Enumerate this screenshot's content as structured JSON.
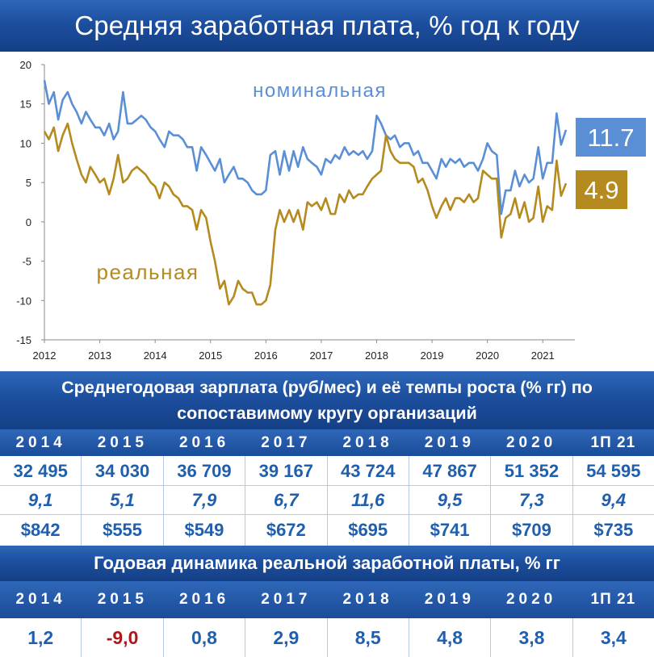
{
  "title": "Средняя заработная плата, % год к году",
  "chart_data": {
    "type": "line",
    "title": "Средняя заработная плата, % год к году",
    "xlim": [
      2012,
      2021.58
    ],
    "ylim": [
      -15,
      20
    ],
    "y_ticks": [
      -15,
      -10,
      -5,
      0,
      5,
      10,
      15,
      20
    ],
    "x_ticks": [
      2012,
      2013,
      2014,
      2015,
      2016,
      2017,
      2018,
      2019,
      2020,
      2021
    ],
    "grid": false,
    "series": [
      {
        "name": "номинальная",
        "color": "#5a8fd6",
        "end_label": "11.7",
        "points": [
          [
            2012.0,
            18.0
          ],
          [
            2012.08,
            15.0
          ],
          [
            2012.17,
            16.5
          ],
          [
            2012.25,
            13.0
          ],
          [
            2012.33,
            15.5
          ],
          [
            2012.42,
            16.5
          ],
          [
            2012.5,
            15.0
          ],
          [
            2012.58,
            14.0
          ],
          [
            2012.67,
            12.5
          ],
          [
            2012.75,
            14.0
          ],
          [
            2012.83,
            13.0
          ],
          [
            2012.92,
            12.0
          ],
          [
            2013.0,
            12.0
          ],
          [
            2013.08,
            11.0
          ],
          [
            2013.17,
            12.5
          ],
          [
            2013.25,
            10.5
          ],
          [
            2013.33,
            11.5
          ],
          [
            2013.42,
            16.5
          ],
          [
            2013.5,
            12.5
          ],
          [
            2013.58,
            12.5
          ],
          [
            2013.67,
            13.0
          ],
          [
            2013.75,
            13.5
          ],
          [
            2013.83,
            13.0
          ],
          [
            2013.92,
            12.0
          ],
          [
            2014.0,
            11.5
          ],
          [
            2014.08,
            10.5
          ],
          [
            2014.17,
            9.5
          ],
          [
            2014.25,
            11.5
          ],
          [
            2014.33,
            11.0
          ],
          [
            2014.42,
            11.0
          ],
          [
            2014.5,
            10.5
          ],
          [
            2014.58,
            9.5
          ],
          [
            2014.67,
            9.5
          ],
          [
            2014.75,
            6.5
          ],
          [
            2014.83,
            9.5
          ],
          [
            2014.92,
            8.5
          ],
          [
            2015.0,
            7.5
          ],
          [
            2015.08,
            6.5
          ],
          [
            2015.17,
            8.0
          ],
          [
            2015.25,
            5.0
          ],
          [
            2015.33,
            6.0
          ],
          [
            2015.42,
            7.0
          ],
          [
            2015.5,
            5.5
          ],
          [
            2015.58,
            5.5
          ],
          [
            2015.67,
            5.0
          ],
          [
            2015.75,
            4.0
          ],
          [
            2015.83,
            3.5
          ],
          [
            2015.92,
            3.5
          ],
          [
            2016.0,
            4.0
          ],
          [
            2016.08,
            8.5
          ],
          [
            2016.17,
            9.0
          ],
          [
            2016.25,
            6.0
          ],
          [
            2016.33,
            9.0
          ],
          [
            2016.42,
            6.5
          ],
          [
            2016.5,
            9.0
          ],
          [
            2016.58,
            7.0
          ],
          [
            2016.67,
            9.5
          ],
          [
            2016.75,
            8.0
          ],
          [
            2016.83,
            7.5
          ],
          [
            2016.92,
            7.0
          ],
          [
            2017.0,
            6.0
          ],
          [
            2017.08,
            8.0
          ],
          [
            2017.17,
            7.5
          ],
          [
            2017.25,
            8.5
          ],
          [
            2017.33,
            8.0
          ],
          [
            2017.42,
            9.5
          ],
          [
            2017.5,
            8.5
          ],
          [
            2017.58,
            9.0
          ],
          [
            2017.67,
            8.5
          ],
          [
            2017.75,
            9.0
          ],
          [
            2017.83,
            8.0
          ],
          [
            2017.92,
            9.0
          ],
          [
            2018.0,
            13.5
          ],
          [
            2018.08,
            12.5
          ],
          [
            2018.17,
            11.0
          ],
          [
            2018.25,
            10.5
          ],
          [
            2018.33,
            11.0
          ],
          [
            2018.42,
            9.5
          ],
          [
            2018.5,
            10.0
          ],
          [
            2018.58,
            10.0
          ],
          [
            2018.67,
            8.5
          ],
          [
            2018.75,
            9.0
          ],
          [
            2018.83,
            7.5
          ],
          [
            2018.92,
            7.5
          ],
          [
            2019.0,
            6.5
          ],
          [
            2019.08,
            5.5
          ],
          [
            2019.17,
            8.0
          ],
          [
            2019.25,
            7.0
          ],
          [
            2019.33,
            8.0
          ],
          [
            2019.42,
            7.5
          ],
          [
            2019.5,
            8.0
          ],
          [
            2019.58,
            7.0
          ],
          [
            2019.67,
            7.5
          ],
          [
            2019.75,
            7.5
          ],
          [
            2019.83,
            6.5
          ],
          [
            2019.92,
            8.0
          ],
          [
            2020.0,
            10.0
          ],
          [
            2020.08,
            9.0
          ],
          [
            2020.17,
            8.5
          ],
          [
            2020.25,
            1.0
          ],
          [
            2020.33,
            4.0
          ],
          [
            2020.42,
            4.0
          ],
          [
            2020.5,
            6.5
          ],
          [
            2020.58,
            4.5
          ],
          [
            2020.67,
            6.0
          ],
          [
            2020.75,
            5.0
          ],
          [
            2020.83,
            5.5
          ],
          [
            2020.92,
            9.5
          ],
          [
            2021.0,
            5.5
          ],
          [
            2021.08,
            7.5
          ],
          [
            2021.17,
            7.5
          ],
          [
            2021.25,
            13.8
          ],
          [
            2021.33,
            9.8
          ],
          [
            2021.42,
            11.7
          ]
        ]
      },
      {
        "name": "реальная",
        "color": "#b58a1e",
        "end_label": "4.9",
        "points": [
          [
            2012.0,
            11.5
          ],
          [
            2012.08,
            10.5
          ],
          [
            2012.17,
            12.0
          ],
          [
            2012.25,
            9.0
          ],
          [
            2012.33,
            11.0
          ],
          [
            2012.42,
            12.5
          ],
          [
            2012.5,
            10.0
          ],
          [
            2012.58,
            8.0
          ],
          [
            2012.67,
            6.0
          ],
          [
            2012.75,
            5.0
          ],
          [
            2012.83,
            7.0
          ],
          [
            2012.92,
            6.0
          ],
          [
            2013.0,
            5.0
          ],
          [
            2013.08,
            5.5
          ],
          [
            2013.17,
            3.5
          ],
          [
            2013.25,
            5.5
          ],
          [
            2013.33,
            8.5
          ],
          [
            2013.42,
            5.0
          ],
          [
            2013.5,
            5.5
          ],
          [
            2013.58,
            6.5
          ],
          [
            2013.67,
            7.0
          ],
          [
            2013.75,
            6.5
          ],
          [
            2013.83,
            6.0
          ],
          [
            2013.92,
            5.0
          ],
          [
            2014.0,
            4.5
          ],
          [
            2014.08,
            3.0
          ],
          [
            2014.17,
            5.0
          ],
          [
            2014.25,
            4.5
          ],
          [
            2014.33,
            3.5
          ],
          [
            2014.42,
            3.0
          ],
          [
            2014.5,
            2.0
          ],
          [
            2014.58,
            2.0
          ],
          [
            2014.67,
            1.5
          ],
          [
            2014.75,
            -1.0
          ],
          [
            2014.83,
            1.5
          ],
          [
            2014.92,
            0.5
          ],
          [
            2015.0,
            -2.5
          ],
          [
            2015.08,
            -5.0
          ],
          [
            2015.17,
            -8.5
          ],
          [
            2015.25,
            -7.5
          ],
          [
            2015.33,
            -10.5
          ],
          [
            2015.42,
            -9.5
          ],
          [
            2015.5,
            -7.5
          ],
          [
            2015.58,
            -8.5
          ],
          [
            2015.67,
            -9.0
          ],
          [
            2015.75,
            -9.0
          ],
          [
            2015.83,
            -10.5
          ],
          [
            2015.92,
            -10.5
          ],
          [
            2016.0,
            -10.0
          ],
          [
            2016.08,
            -8.0
          ],
          [
            2016.17,
            -1.0
          ],
          [
            2016.25,
            1.5
          ],
          [
            2016.33,
            0.0
          ],
          [
            2016.42,
            1.5
          ],
          [
            2016.5,
            0.0
          ],
          [
            2016.58,
            1.5
          ],
          [
            2016.67,
            -1.0
          ],
          [
            2016.75,
            2.5
          ],
          [
            2016.83,
            2.0
          ],
          [
            2016.92,
            2.5
          ],
          [
            2017.0,
            1.5
          ],
          [
            2017.08,
            3.0
          ],
          [
            2017.17,
            1.0
          ],
          [
            2017.25,
            1.0
          ],
          [
            2017.33,
            3.5
          ],
          [
            2017.42,
            2.5
          ],
          [
            2017.5,
            4.0
          ],
          [
            2017.58,
            3.0
          ],
          [
            2017.67,
            3.5
          ],
          [
            2017.75,
            3.5
          ],
          [
            2017.83,
            4.5
          ],
          [
            2017.92,
            5.5
          ],
          [
            2018.0,
            6.0
          ],
          [
            2018.08,
            6.5
          ],
          [
            2018.17,
            11.0
          ],
          [
            2018.25,
            9.0
          ],
          [
            2018.33,
            8.0
          ],
          [
            2018.42,
            7.5
          ],
          [
            2018.5,
            7.5
          ],
          [
            2018.58,
            7.5
          ],
          [
            2018.67,
            7.0
          ],
          [
            2018.75,
            5.0
          ],
          [
            2018.83,
            5.5
          ],
          [
            2018.92,
            4.0
          ],
          [
            2019.0,
            2.0
          ],
          [
            2019.08,
            0.5
          ],
          [
            2019.17,
            2.0
          ],
          [
            2019.25,
            3.0
          ],
          [
            2019.33,
            1.5
          ],
          [
            2019.42,
            3.0
          ],
          [
            2019.5,
            3.0
          ],
          [
            2019.58,
            2.5
          ],
          [
            2019.67,
            3.5
          ],
          [
            2019.75,
            2.5
          ],
          [
            2019.83,
            3.0
          ],
          [
            2019.92,
            6.5
          ],
          [
            2020.0,
            6.0
          ],
          [
            2020.08,
            5.5
          ],
          [
            2020.17,
            5.5
          ],
          [
            2020.25,
            -2.0
          ],
          [
            2020.33,
            0.5
          ],
          [
            2020.42,
            1.0
          ],
          [
            2020.5,
            3.0
          ],
          [
            2020.58,
            0.5
          ],
          [
            2020.67,
            2.5
          ],
          [
            2020.75,
            0.0
          ],
          [
            2020.83,
            0.5
          ],
          [
            2020.92,
            4.5
          ],
          [
            2021.0,
            0.0
          ],
          [
            2021.08,
            2.0
          ],
          [
            2021.17,
            1.5
          ],
          [
            2021.25,
            7.8
          ],
          [
            2021.33,
            3.3
          ],
          [
            2021.42,
            4.9
          ]
        ]
      }
    ]
  },
  "table1": {
    "title": "Среднегодовая зарплата (руб/мес) и её темпы роста (% гг)  по сопоставимому кругу организаций",
    "years": [
      "2014",
      "2015",
      "2016",
      "2017",
      "2018",
      "2019",
      "2020",
      "1П 21"
    ],
    "salary_rub": [
      "32 495",
      "34 030",
      "36 709",
      "39 167",
      "43 724",
      "47 867",
      "51 352",
      "54 595"
    ],
    "growth_pct": [
      "9,1",
      "5,1",
      "7,9",
      "6,7",
      "11,6",
      "9,5",
      "7,3",
      "9,4"
    ],
    "salary_usd": [
      "$842",
      "$555",
      "$549",
      "$672",
      "$695",
      "$741",
      "$709",
      "$735"
    ]
  },
  "table2": {
    "title": "Годовая динамика реальной заработной платы, % гг",
    "years": [
      "2014",
      "2015",
      "2016",
      "2017",
      "2018",
      "2019",
      "2020",
      "1П 21"
    ],
    "values": [
      "1,2",
      "-9,0",
      "0,8",
      "2,9",
      "8,5",
      "4,8",
      "3,8",
      "3,4"
    ]
  }
}
